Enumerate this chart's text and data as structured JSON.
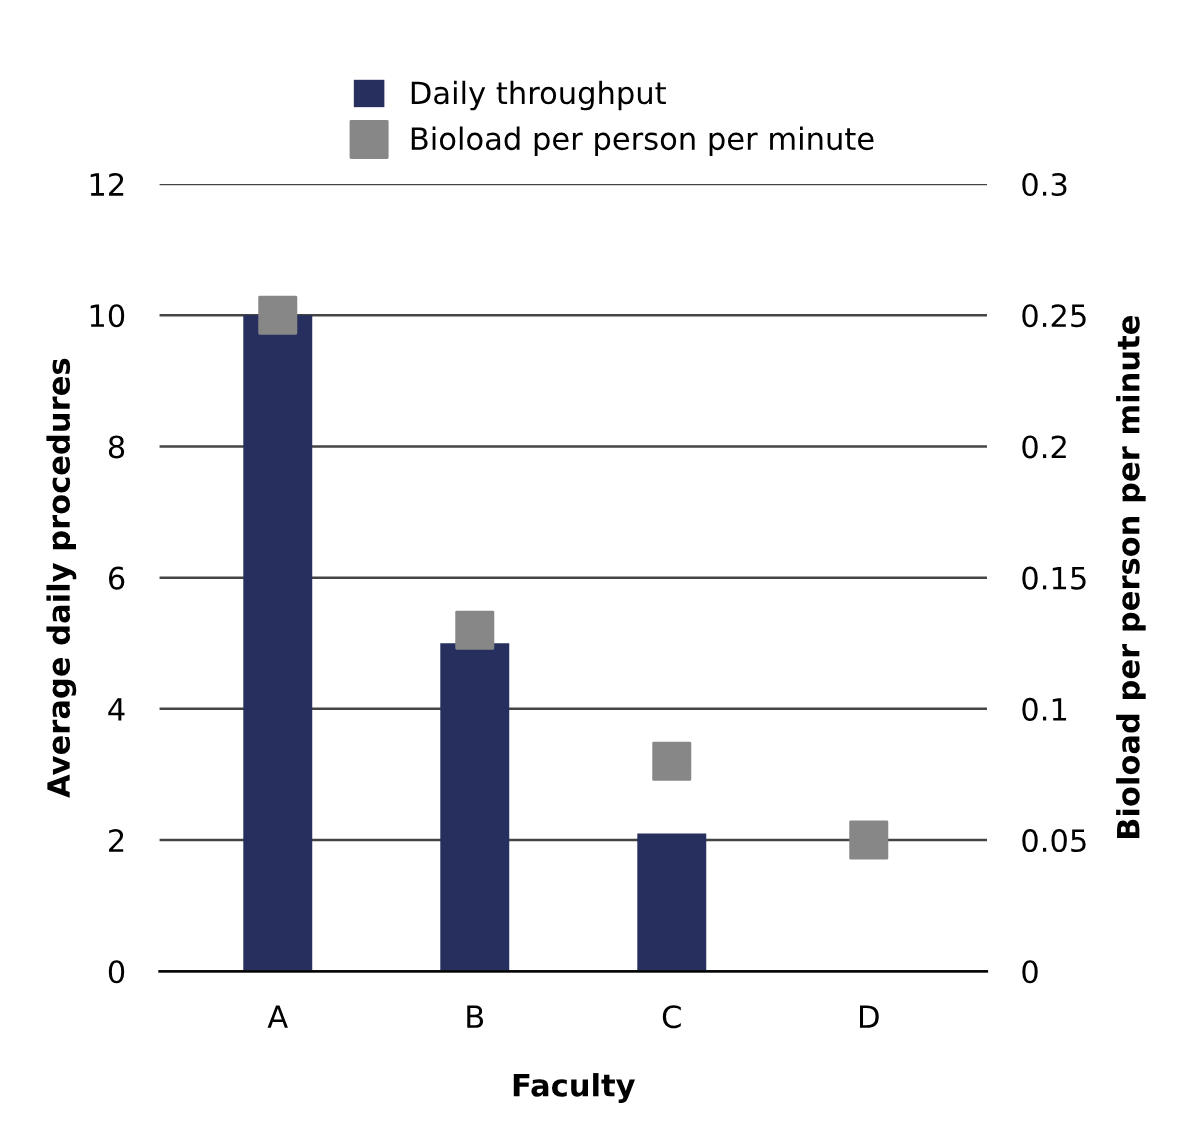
{
  "chart_data": {
    "type": "bar",
    "xlabel": "Faculty",
    "ylabel": "Average daily procedures",
    "y2label": "Bioload per person per minute",
    "categories": [
      "A",
      "B",
      "C",
      "D"
    ],
    "series": [
      {
        "name": "Daily throughput",
        "color": "#262f5e",
        "values": [
          10,
          5,
          2.1,
          0
        ]
      },
      {
        "name": "Bioload per person per minute",
        "type": "scatter",
        "axis": "y2",
        "color": "#878787",
        "marker": "square",
        "values": [
          0.25,
          0.13,
          0.08,
          0.05
        ]
      }
    ],
    "ylim": [
      0,
      12
    ],
    "yticks": [
      0,
      2,
      4,
      6,
      8,
      10,
      12
    ],
    "y2lim": [
      0,
      0.3
    ],
    "y2ticks": [
      0,
      0.05,
      0.1,
      0.15,
      0.2,
      0.25,
      0.3
    ],
    "grid": "y",
    "legend": "top"
  }
}
